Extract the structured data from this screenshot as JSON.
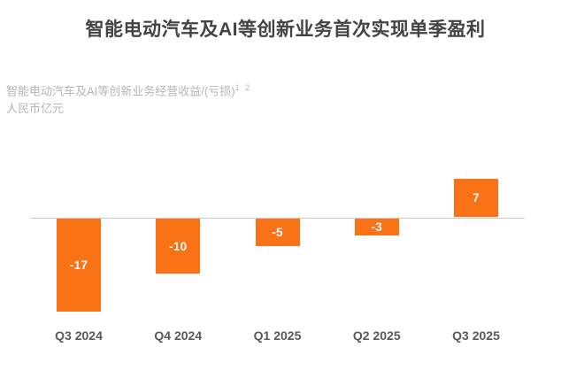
{
  "page": {
    "title": "智能电动汽车及AI等创新业务首次实现单季盈利",
    "subtitle_line1": "智能电动汽车及AI等创新业务经营收益/(亏损)",
    "subtitle_footnote_refs": "1 2",
    "subtitle_line2": "人民币亿元"
  },
  "colors": {
    "bar": "#f97316",
    "axis_line": "#c9c9c9",
    "title_text": "#434343",
    "subtitle_text": "#b5b5b5",
    "tick_text": "#595959",
    "bar_label_text": "#ffffff",
    "background": "#ffffff"
  },
  "chart_data": {
    "type": "bar",
    "title": "智能电动汽车及AI等创新业务首次实现单季盈利",
    "subtitle": "智能电动汽车及AI等创新业务经营收益/(亏损)¹²",
    "ylabel": "人民币亿元",
    "xlabel": "",
    "categories": [
      "Q3 2024",
      "Q4 2024",
      "Q1 2025",
      "Q2 2025",
      "Q3 2025"
    ],
    "values": [
      -17,
      -10,
      -5,
      -3,
      7
    ],
    "data_labels": [
      "-17",
      "-10",
      "-5",
      "-3",
      "7"
    ],
    "ylim": [
      -20,
      10
    ],
    "grid": false,
    "legend": null,
    "zero_line": true,
    "bar_color": "#f97316"
  }
}
